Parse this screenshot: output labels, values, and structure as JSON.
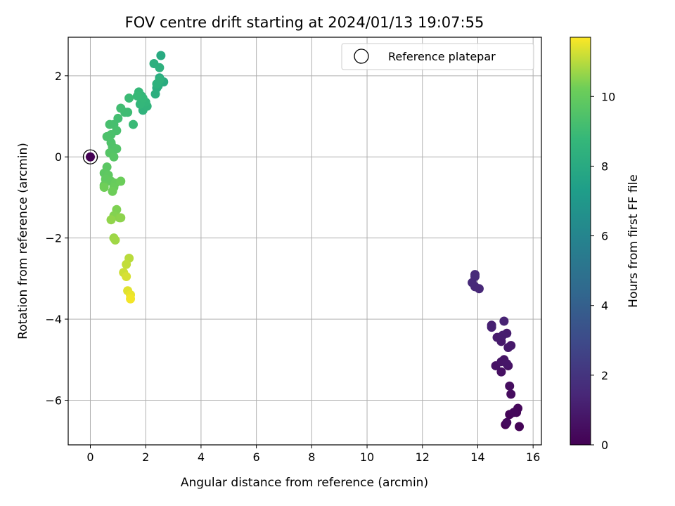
{
  "chart_data": {
    "type": "scatter",
    "title": "FOV centre drift starting at 2024/01/13 19:07:55",
    "xlabel": "Angular distance from reference (arcmin)",
    "ylabel": "Rotation from reference (arcmin)",
    "xlim": [
      -0.8,
      16.3
    ],
    "ylim": [
      -7.1,
      2.95
    ],
    "xticks": [
      0,
      2,
      4,
      6,
      8,
      10,
      12,
      14,
      16
    ],
    "yticks": [
      -6,
      -4,
      -2,
      0,
      2
    ],
    "grid": true,
    "legend": {
      "placement": "top-right",
      "entries": [
        "Reference platepar"
      ]
    },
    "colorbar": {
      "label": "Hours from first FF file",
      "range": [
        0,
        11.7
      ],
      "ticks": [
        0,
        2,
        4,
        6,
        8,
        10
      ],
      "colormap": "viridis"
    },
    "reference_point": {
      "x": 0,
      "y": 0
    },
    "points": [
      {
        "x": 0.0,
        "y": 0.0,
        "h": 0.0
      },
      {
        "x": 15.0,
        "y": -6.6,
        "h": 0.05
      },
      {
        "x": 15.5,
        "y": -6.65,
        "h": 0.1
      },
      {
        "x": 15.15,
        "y": -6.35,
        "h": 0.15
      },
      {
        "x": 15.4,
        "y": -6.3,
        "h": 0.2
      },
      {
        "x": 15.45,
        "y": -6.2,
        "h": 0.25
      },
      {
        "x": 15.3,
        "y": -6.3,
        "h": 0.3
      },
      {
        "x": 15.05,
        "y": -6.55,
        "h": 0.35
      },
      {
        "x": 15.2,
        "y": -5.85,
        "h": 0.4
      },
      {
        "x": 15.15,
        "y": -5.65,
        "h": 0.45
      },
      {
        "x": 14.85,
        "y": -5.3,
        "h": 0.55
      },
      {
        "x": 15.1,
        "y": -5.15,
        "h": 0.6
      },
      {
        "x": 14.65,
        "y": -5.15,
        "h": 0.65
      },
      {
        "x": 14.95,
        "y": -5.0,
        "h": 0.7
      },
      {
        "x": 14.85,
        "y": -5.05,
        "h": 0.75
      },
      {
        "x": 15.05,
        "y": -5.1,
        "h": 0.8
      },
      {
        "x": 15.2,
        "y": -4.65,
        "h": 0.85
      },
      {
        "x": 15.1,
        "y": -4.7,
        "h": 0.9
      },
      {
        "x": 14.85,
        "y": -4.55,
        "h": 0.95
      },
      {
        "x": 14.7,
        "y": -4.45,
        "h": 1.0
      },
      {
        "x": 15.05,
        "y": -4.35,
        "h": 1.05
      },
      {
        "x": 14.9,
        "y": -4.4,
        "h": 1.1
      },
      {
        "x": 14.5,
        "y": -4.15,
        "h": 1.15
      },
      {
        "x": 14.5,
        "y": -4.2,
        "h": 1.2
      },
      {
        "x": 14.95,
        "y": -4.05,
        "h": 1.3
      },
      {
        "x": 14.05,
        "y": -3.25,
        "h": 1.45
      },
      {
        "x": 13.9,
        "y": -3.2,
        "h": 1.5
      },
      {
        "x": 13.8,
        "y": -3.1,
        "h": 1.55
      },
      {
        "x": 13.9,
        "y": -2.95,
        "h": 1.6
      },
      {
        "x": 13.9,
        "y": -2.9,
        "h": 1.65
      },
      {
        "x": 2.55,
        "y": 2.5,
        "h": 8.0
      },
      {
        "x": 2.5,
        "y": 1.95,
        "h": 8.05
      },
      {
        "x": 2.65,
        "y": 1.85,
        "h": 8.1
      },
      {
        "x": 2.4,
        "y": 1.7,
        "h": 8.15
      },
      {
        "x": 2.45,
        "y": 1.75,
        "h": 8.2
      },
      {
        "x": 2.35,
        "y": 1.55,
        "h": 8.25
      },
      {
        "x": 2.3,
        "y": 2.3,
        "h": 8.3
      },
      {
        "x": 2.5,
        "y": 2.2,
        "h": 8.35
      },
      {
        "x": 2.4,
        "y": 1.8,
        "h": 8.4
      },
      {
        "x": 2.5,
        "y": 1.9,
        "h": 8.45
      },
      {
        "x": 1.9,
        "y": 1.15,
        "h": 8.5
      },
      {
        "x": 2.05,
        "y": 1.25,
        "h": 8.55
      },
      {
        "x": 1.85,
        "y": 1.5,
        "h": 8.6
      },
      {
        "x": 2.0,
        "y": 1.35,
        "h": 8.65
      },
      {
        "x": 1.8,
        "y": 1.3,
        "h": 8.7
      },
      {
        "x": 1.9,
        "y": 1.45,
        "h": 8.75
      },
      {
        "x": 1.75,
        "y": 1.6,
        "h": 8.8
      },
      {
        "x": 1.7,
        "y": 1.5,
        "h": 8.85
      },
      {
        "x": 1.55,
        "y": 0.8,
        "h": 8.9
      },
      {
        "x": 1.4,
        "y": 1.45,
        "h": 8.95
      },
      {
        "x": 1.35,
        "y": 1.1,
        "h": 9.0
      },
      {
        "x": 1.25,
        "y": 1.1,
        "h": 9.05
      },
      {
        "x": 1.1,
        "y": 1.2,
        "h": 9.1
      },
      {
        "x": 1.0,
        "y": 0.95,
        "h": 9.15
      },
      {
        "x": 0.85,
        "y": 0.8,
        "h": 9.2
      },
      {
        "x": 0.7,
        "y": 0.8,
        "h": 9.25
      },
      {
        "x": 0.95,
        "y": 0.65,
        "h": 9.3
      },
      {
        "x": 0.75,
        "y": 0.55,
        "h": 9.35
      },
      {
        "x": 0.6,
        "y": 0.5,
        "h": 9.4
      },
      {
        "x": 0.75,
        "y": 0.35,
        "h": 9.45
      },
      {
        "x": 0.8,
        "y": 0.25,
        "h": 9.5
      },
      {
        "x": 0.95,
        "y": 0.2,
        "h": 9.55
      },
      {
        "x": 0.7,
        "y": 0.1,
        "h": 9.6
      },
      {
        "x": 0.85,
        "y": 0.0,
        "h": 9.65
      },
      {
        "x": 0.6,
        "y": -0.25,
        "h": 9.75
      },
      {
        "x": 0.5,
        "y": -0.4,
        "h": 9.8
      },
      {
        "x": 0.65,
        "y": -0.45,
        "h": 9.85
      },
      {
        "x": 0.55,
        "y": -0.55,
        "h": 9.9
      },
      {
        "x": 0.75,
        "y": -0.6,
        "h": 9.95
      },
      {
        "x": 0.5,
        "y": -0.7,
        "h": 10.0
      },
      {
        "x": 0.9,
        "y": -0.65,
        "h": 10.05
      },
      {
        "x": 0.85,
        "y": -0.75,
        "h": 10.1
      },
      {
        "x": 1.1,
        "y": -0.6,
        "h": 10.15
      },
      {
        "x": 0.8,
        "y": -0.85,
        "h": 10.2
      },
      {
        "x": 0.5,
        "y": -0.75,
        "h": 10.25
      },
      {
        "x": 0.95,
        "y": -1.3,
        "h": 10.4
      },
      {
        "x": 0.85,
        "y": -1.45,
        "h": 10.45
      },
      {
        "x": 1.05,
        "y": -1.5,
        "h": 10.5
      },
      {
        "x": 1.1,
        "y": -1.5,
        "h": 10.55
      },
      {
        "x": 0.75,
        "y": -1.55,
        "h": 10.6
      },
      {
        "x": 0.85,
        "y": -2.0,
        "h": 10.7
      },
      {
        "x": 0.9,
        "y": -2.05,
        "h": 10.75
      },
      {
        "x": 1.4,
        "y": -2.5,
        "h": 11.0
      },
      {
        "x": 1.3,
        "y": -2.65,
        "h": 11.1
      },
      {
        "x": 1.2,
        "y": -2.85,
        "h": 11.2
      },
      {
        "x": 1.3,
        "y": -2.95,
        "h": 11.3
      },
      {
        "x": 1.35,
        "y": -3.3,
        "h": 11.4
      },
      {
        "x": 1.45,
        "y": -3.4,
        "h": 11.5
      },
      {
        "x": 1.45,
        "y": -3.5,
        "h": 11.6
      }
    ]
  }
}
